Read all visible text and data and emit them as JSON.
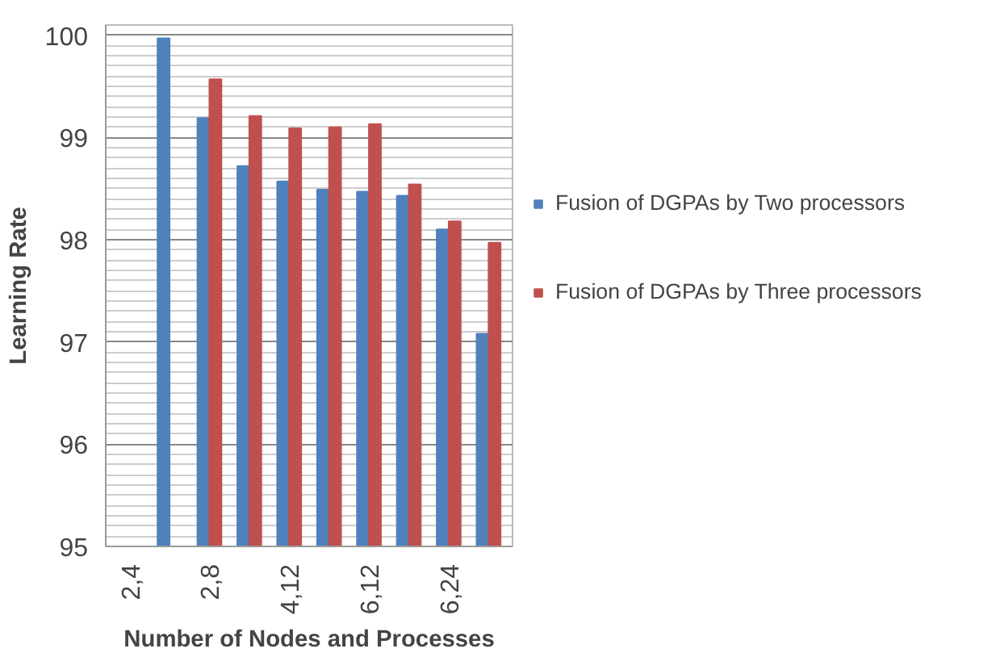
{
  "chart_data": {
    "type": "bar",
    "xlabel": "Number of Nodes and Processes",
    "ylabel": "Learning Rate",
    "categories": [
      "2,4",
      null,
      "2,8",
      null,
      "4,12",
      null,
      "6,12",
      null,
      "6,24",
      null
    ],
    "series": [
      {
        "name": "Fusion of DGPAs by Two processors",
        "color": "#4f81bd",
        "values": [
          null,
          99.97,
          99.19,
          98.72,
          98.57,
          98.49,
          98.47,
          98.43,
          98.1,
          97.08
        ]
      },
      {
        "name": "Fusion of DGPAs by Three processors",
        "color": "#c0504d",
        "values": [
          null,
          null,
          99.57,
          99.21,
          99.09,
          99.1,
          99.13,
          98.54,
          98.18,
          97.97
        ]
      }
    ],
    "ylim": [
      95,
      100.1
    ],
    "yticks": [
      95,
      96,
      97,
      98,
      99,
      100
    ],
    "grid": "y",
    "legend": "right"
  }
}
